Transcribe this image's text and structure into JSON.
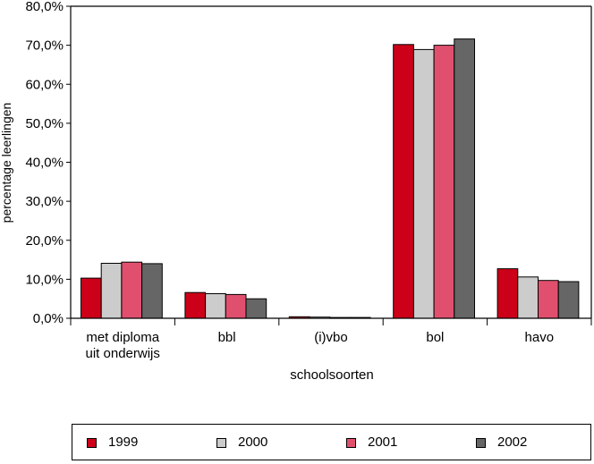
{
  "chart_data": {
    "type": "bar",
    "title": "",
    "xlabel": "schoolsoorten",
    "ylabel": "percentage leerlingen",
    "ylim": [
      0,
      80
    ],
    "yticks": [
      "0,0%",
      "10,0%",
      "20,0%",
      "30,0%",
      "40,0%",
      "50,0%",
      "60,0%",
      "70,0%",
      "80,0%"
    ],
    "categories": [
      [
        "met diploma",
        "uit onderwijs"
      ],
      [
        "bbl"
      ],
      [
        "(i)vbo"
      ],
      [
        "bol"
      ],
      [
        "havo"
      ]
    ],
    "series": [
      {
        "name": "1999",
        "color": "#cc0019",
        "values": [
          10.3,
          6.6,
          0.4,
          70.2,
          12.7
        ]
      },
      {
        "name": "2000",
        "color": "#cccccc",
        "values": [
          14.1,
          6.3,
          0.3,
          68.9,
          10.6
        ]
      },
      {
        "name": "2001",
        "color": "#e0506e",
        "values": [
          14.4,
          6.1,
          0.2,
          70.0,
          9.7
        ]
      },
      {
        "name": "2002",
        "color": "#666666",
        "values": [
          14.0,
          5.0,
          0.2,
          71.6,
          9.4
        ]
      }
    ],
    "legend": "bottom",
    "grid": false
  }
}
